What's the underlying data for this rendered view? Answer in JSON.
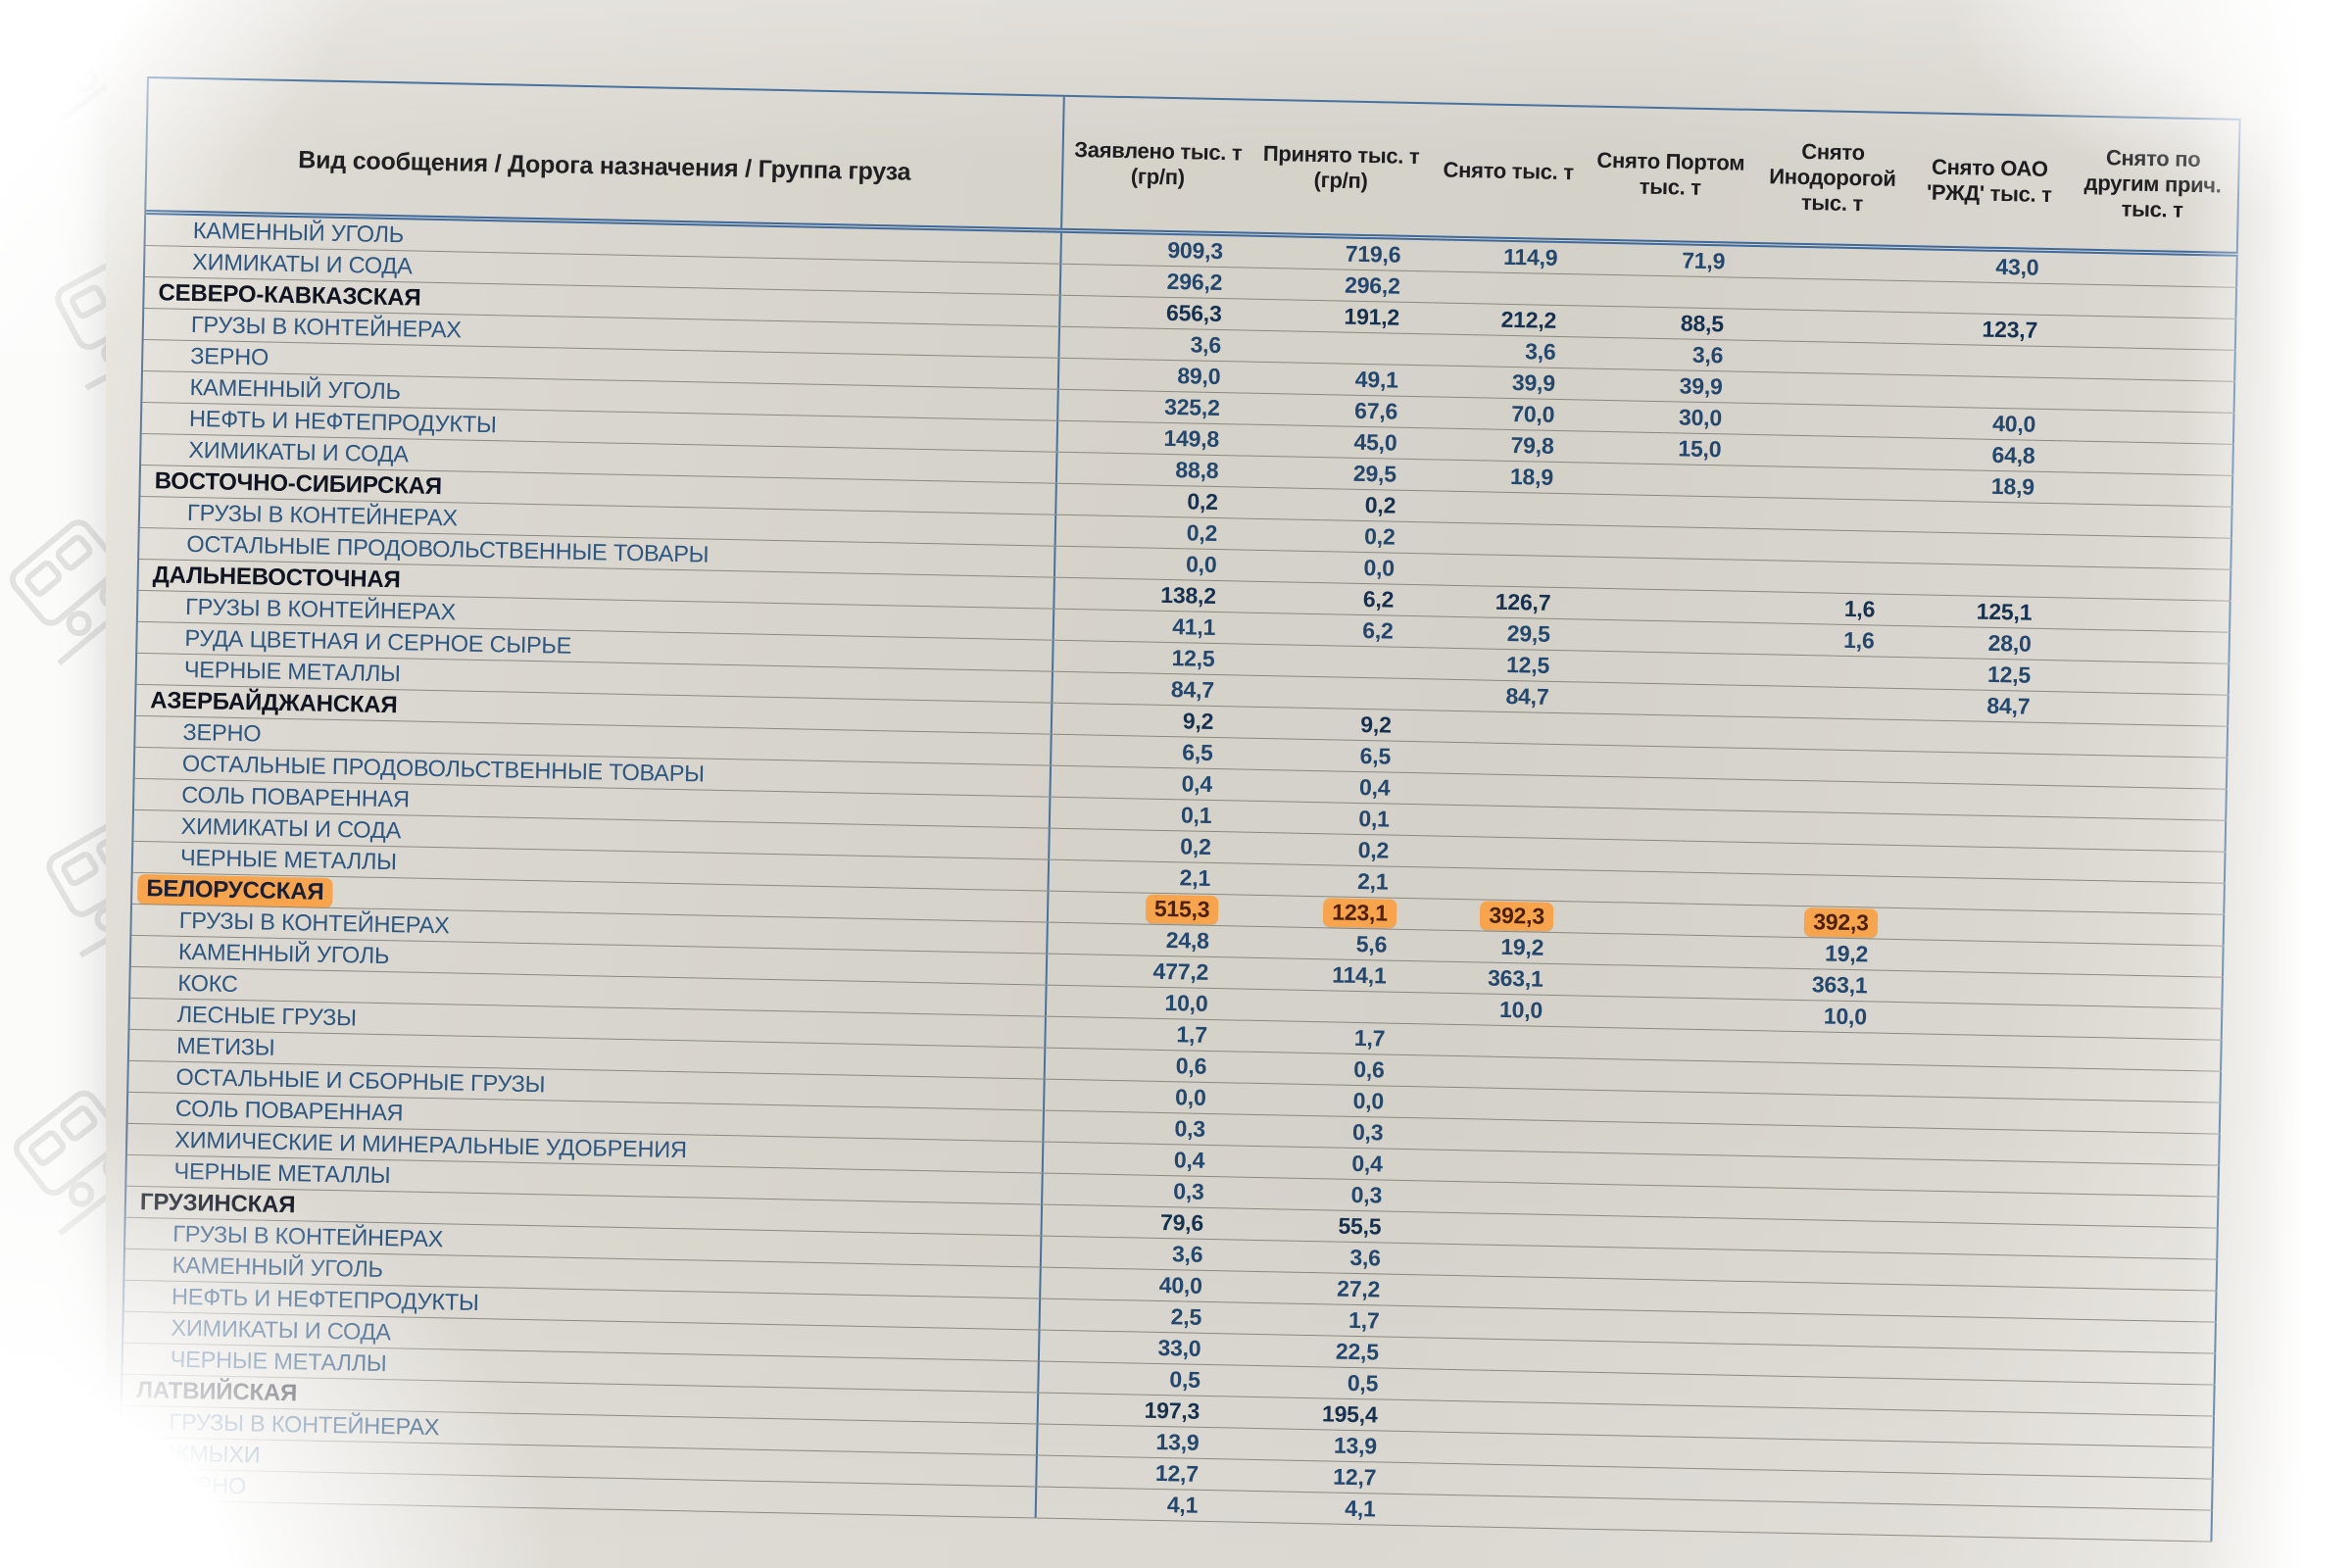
{
  "document": {
    "header": {
      "col_label": "Вид сообщения / Дорога назначения / Группа груза",
      "columns": [
        {
          "lines": [
            "Заявлено тыс. т",
            "(гр/п)"
          ]
        },
        {
          "lines": [
            "Принято тыс. т",
            "(гр/п)"
          ]
        },
        {
          "lines": [
            "Снято тыс. т"
          ]
        },
        {
          "lines": [
            "Снято Портом",
            "тыс. т"
          ]
        },
        {
          "lines": [
            "Снято",
            "Инодорогой",
            "тыс. т"
          ]
        },
        {
          "lines": [
            "Снято ОАО",
            "'РЖД' тыс. т"
          ]
        },
        {
          "lines": [
            "Снято по",
            "другим прич.",
            "тыс. т"
          ]
        }
      ]
    },
    "rows": [
      {
        "label": "КАМЕННЫЙ УГОЛЬ",
        "type": "item",
        "values": [
          "909,3",
          "719,6",
          "114,9",
          "71,9",
          "",
          "43,0",
          ""
        ]
      },
      {
        "label": "ХИМИКАТЫ И СОДА",
        "type": "item",
        "values": [
          "296,2",
          "296,2",
          "",
          "",
          "",
          "",
          ""
        ]
      },
      {
        "label": "СЕВЕРО-КАВКАЗСКАЯ",
        "type": "section",
        "values": [
          "656,3",
          "191,2",
          "212,2",
          "88,5",
          "",
          "123,7",
          ""
        ]
      },
      {
        "label": "ГРУЗЫ В КОНТЕЙНЕРАХ",
        "type": "item",
        "values": [
          "3,6",
          "",
          "3,6",
          "3,6",
          "",
          "",
          ""
        ]
      },
      {
        "label": "ЗЕРНО",
        "type": "item",
        "values": [
          "89,0",
          "49,1",
          "39,9",
          "39,9",
          "",
          "",
          ""
        ]
      },
      {
        "label": "КАМЕННЫЙ УГОЛЬ",
        "type": "item",
        "values": [
          "325,2",
          "67,6",
          "70,0",
          "30,0",
          "",
          "40,0",
          ""
        ]
      },
      {
        "label": "НЕФТЬ И НЕФТЕПРОДУКТЫ",
        "type": "item",
        "values": [
          "149,8",
          "45,0",
          "79,8",
          "15,0",
          "",
          "64,8",
          ""
        ]
      },
      {
        "label": "ХИМИКАТЫ И СОДА",
        "type": "item",
        "values": [
          "88,8",
          "29,5",
          "18,9",
          "",
          "",
          "18,9",
          ""
        ]
      },
      {
        "label": "ВОСТОЧНО-СИБИРСКАЯ",
        "type": "section",
        "values": [
          "0,2",
          "0,2",
          "",
          "",
          "",
          "",
          ""
        ]
      },
      {
        "label": "ГРУЗЫ В КОНТЕЙНЕРАХ",
        "type": "item",
        "values": [
          "0,2",
          "0,2",
          "",
          "",
          "",
          "",
          ""
        ]
      },
      {
        "label": "ОСТАЛЬНЫЕ ПРОДОВОЛЬСТВЕННЫЕ ТОВАРЫ",
        "type": "item",
        "values": [
          "0,0",
          "0,0",
          "",
          "",
          "",
          "",
          ""
        ]
      },
      {
        "label": "ДАЛЬНЕВОСТОЧНАЯ",
        "type": "section",
        "values": [
          "138,2",
          "6,2",
          "126,7",
          "",
          "1,6",
          "125,1",
          ""
        ]
      },
      {
        "label": "ГРУЗЫ В КОНТЕЙНЕРАХ",
        "type": "item",
        "values": [
          "41,1",
          "6,2",
          "29,5",
          "",
          "1,6",
          "28,0",
          ""
        ]
      },
      {
        "label": "РУДА ЦВЕТНАЯ И СЕРНОЕ СЫРЬЕ",
        "type": "item",
        "values": [
          "12,5",
          "",
          "12,5",
          "",
          "",
          "12,5",
          ""
        ]
      },
      {
        "label": "ЧЕРНЫЕ МЕТАЛЛЫ",
        "type": "item",
        "values": [
          "84,7",
          "",
          "84,7",
          "",
          "",
          "84,7",
          ""
        ]
      },
      {
        "label": "АЗЕРБАЙДЖАНСКАЯ",
        "type": "section",
        "values": [
          "9,2",
          "9,2",
          "",
          "",
          "",
          "",
          ""
        ]
      },
      {
        "label": "ЗЕРНО",
        "type": "item",
        "values": [
          "6,5",
          "6,5",
          "",
          "",
          "",
          "",
          ""
        ]
      },
      {
        "label": "ОСТАЛЬНЫЕ ПРОДОВОЛЬСТВЕННЫЕ ТОВАРЫ",
        "type": "item",
        "values": [
          "0,4",
          "0,4",
          "",
          "",
          "",
          "",
          ""
        ]
      },
      {
        "label": "СОЛЬ ПОВАРЕННАЯ",
        "type": "item",
        "values": [
          "0,1",
          "0,1",
          "",
          "",
          "",
          "",
          ""
        ]
      },
      {
        "label": "ХИМИКАТЫ И СОДА",
        "type": "item",
        "values": [
          "0,2",
          "0,2",
          "",
          "",
          "",
          "",
          ""
        ]
      },
      {
        "label": "ЧЕРНЫЕ МЕТАЛЛЫ",
        "type": "item",
        "values": [
          "2,1",
          "2,1",
          "",
          "",
          "",
          "",
          ""
        ]
      },
      {
        "label": "БЕЛОРУССКАЯ",
        "type": "section",
        "highlight": true,
        "values": [
          "515,3",
          "123,1",
          "392,3",
          "",
          "392,3",
          "",
          ""
        ]
      },
      {
        "label": "ГРУЗЫ В КОНТЕЙНЕРАХ",
        "type": "item",
        "values": [
          "24,8",
          "5,6",
          "19,2",
          "",
          "19,2",
          "",
          ""
        ]
      },
      {
        "label": "КАМЕННЫЙ УГОЛЬ",
        "type": "item",
        "values": [
          "477,2",
          "114,1",
          "363,1",
          "",
          "363,1",
          "",
          ""
        ]
      },
      {
        "label": "КОКС",
        "type": "item",
        "values": [
          "10,0",
          "",
          "10,0",
          "",
          "10,0",
          "",
          ""
        ]
      },
      {
        "label": "ЛЕСНЫЕ ГРУЗЫ",
        "type": "item",
        "values": [
          "1,7",
          "1,7",
          "",
          "",
          "",
          "",
          ""
        ]
      },
      {
        "label": "МЕТИЗЫ",
        "type": "item",
        "values": [
          "0,6",
          "0,6",
          "",
          "",
          "",
          "",
          ""
        ]
      },
      {
        "label": "ОСТАЛЬНЫЕ И СБОРНЫЕ ГРУЗЫ",
        "type": "item",
        "values": [
          "0,0",
          "0,0",
          "",
          "",
          "",
          "",
          ""
        ]
      },
      {
        "label": "СОЛЬ ПОВАРЕННАЯ",
        "type": "item",
        "values": [
          "0,3",
          "0,3",
          "",
          "",
          "",
          "",
          ""
        ]
      },
      {
        "label": "ХИМИЧЕСКИЕ И МИНЕРАЛЬНЫЕ УДОБРЕНИЯ",
        "type": "item",
        "values": [
          "0,4",
          "0,4",
          "",
          "",
          "",
          "",
          ""
        ]
      },
      {
        "label": "ЧЕРНЫЕ МЕТАЛЛЫ",
        "type": "item",
        "values": [
          "0,3",
          "0,3",
          "",
          "",
          "",
          "",
          ""
        ]
      },
      {
        "label": "ГРУЗИНСКАЯ",
        "type": "section",
        "values": [
          "79,6",
          "55,5",
          "",
          "",
          "",
          "",
          ""
        ]
      },
      {
        "label": "ГРУЗЫ В КОНТЕЙНЕРАХ",
        "type": "item",
        "values": [
          "3,6",
          "3,6",
          "",
          "",
          "",
          "",
          ""
        ]
      },
      {
        "label": "КАМЕННЫЙ УГОЛЬ",
        "type": "item",
        "values": [
          "40,0",
          "27,2",
          "",
          "",
          "",
          "",
          ""
        ]
      },
      {
        "label": "НЕФТЬ И НЕФТЕПРОДУКТЫ",
        "type": "item",
        "values": [
          "2,5",
          "1,7",
          "",
          "",
          "",
          "",
          ""
        ]
      },
      {
        "label": "ХИМИКАТЫ И СОДА",
        "type": "item",
        "values": [
          "33,0",
          "22,5",
          "",
          "",
          "",
          "",
          ""
        ]
      },
      {
        "label": "ЧЕРНЫЕ МЕТАЛЛЫ",
        "type": "item",
        "values": [
          "0,5",
          "0,5",
          "",
          "",
          "",
          "",
          ""
        ]
      },
      {
        "label": "ЛАТВИЙСКАЯ",
        "type": "section",
        "values": [
          "197,3",
          "195,4",
          "",
          "",
          "",
          "",
          ""
        ]
      },
      {
        "label": "ГРУЗЫ В КОНТЕЙНЕРАХ",
        "type": "item",
        "values": [
          "13,9",
          "13,9",
          "",
          "",
          "",
          "",
          ""
        ]
      },
      {
        "label": "ЖМЫХИ",
        "type": "item",
        "values": [
          "12,7",
          "12,7",
          "",
          "",
          "",
          "",
          ""
        ]
      },
      {
        "label": "ЗЕРНО",
        "type": "item",
        "values": [
          "4,1",
          "4,1",
          "",
          "",
          "",
          "",
          ""
        ]
      }
    ],
    "colors": {
      "highlight": "#f7a44d",
      "accent_blue": "#47729f",
      "label_blue": "#2d5680",
      "paper": "#d6d3cb"
    },
    "icons": {
      "watermark": "train-wagon-outline-pattern"
    }
  }
}
